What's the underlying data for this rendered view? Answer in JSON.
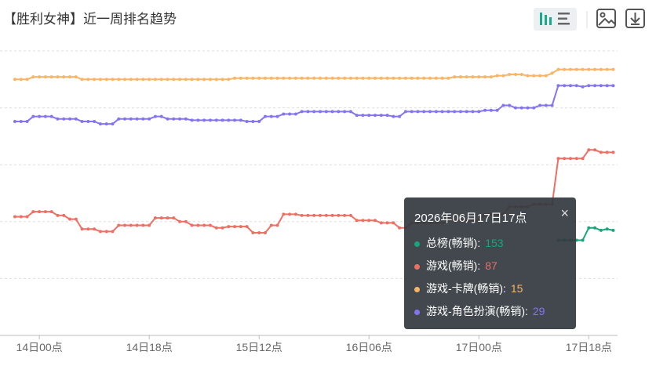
{
  "header": {
    "title": "【胜利女神】近一周排名趋势"
  },
  "chart_data": {
    "type": "line",
    "categories": [
      null,
      null,
      null,
      null,
      "14日00点",
      null,
      null,
      null,
      null,
      null,
      null,
      null,
      null,
      null,
      null,
      null,
      null,
      null,
      null,
      null,
      null,
      null,
      "14日18点",
      null,
      null,
      null,
      null,
      null,
      null,
      null,
      null,
      null,
      null,
      null,
      null,
      null,
      null,
      null,
      null,
      null,
      "15日12点",
      null,
      null,
      null,
      null,
      null,
      null,
      null,
      null,
      null,
      null,
      null,
      null,
      null,
      null,
      null,
      null,
      null,
      "16日06点",
      null,
      null,
      null,
      null,
      null,
      null,
      null,
      null,
      null,
      null,
      null,
      null,
      null,
      null,
      null,
      null,
      null,
      "17日00点",
      null,
      null,
      null,
      null,
      null,
      null,
      null,
      null,
      null,
      null,
      null,
      null,
      null,
      null,
      null,
      null,
      null,
      "17日18点",
      null,
      null,
      null,
      null
    ],
    "ylim": [
      0,
      230
    ],
    "yticks": [
      0,
      46,
      92,
      138,
      184,
      230
    ],
    "y_inverted": true,
    "grid": true,
    "series": [
      {
        "name": "总榜(畅销)",
        "color": "#17a67b",
        "values": [
          null,
          null,
          null,
          null,
          null,
          null,
          null,
          null,
          null,
          null,
          null,
          null,
          null,
          null,
          null,
          null,
          null,
          null,
          null,
          null,
          null,
          null,
          null,
          null,
          null,
          null,
          null,
          null,
          null,
          null,
          null,
          null,
          null,
          null,
          null,
          null,
          null,
          null,
          null,
          null,
          null,
          null,
          null,
          null,
          null,
          null,
          null,
          null,
          null,
          null,
          null,
          null,
          null,
          null,
          null,
          null,
          null,
          null,
          null,
          null,
          null,
          null,
          null,
          null,
          null,
          null,
          null,
          null,
          null,
          null,
          null,
          null,
          null,
          null,
          null,
          null,
          null,
          null,
          null,
          null,
          null,
          null,
          null,
          null,
          null,
          null,
          null,
          null,
          null,
          153,
          153,
          153,
          153,
          153,
          143,
          143,
          145,
          144,
          145
        ]
      },
      {
        "name": "游戏(畅销)",
        "color": "#ee6f63",
        "values": [
          134,
          134,
          134,
          130,
          130,
          130,
          130,
          133,
          133,
          136,
          136,
          144,
          144,
          144,
          146,
          146,
          146,
          141,
          141,
          141,
          141,
          141,
          141,
          135,
          135,
          135,
          135,
          138,
          138,
          141,
          141,
          141,
          141,
          143,
          143,
          142,
          142,
          142,
          142,
          147,
          147,
          147,
          141,
          141,
          132,
          132,
          132,
          133,
          133,
          133,
          133,
          133,
          133,
          133,
          133,
          133,
          137,
          137,
          137,
          137,
          139,
          139,
          139,
          143,
          143,
          139,
          139,
          139,
          139,
          139,
          139,
          137,
          137,
          137,
          137,
          137,
          137,
          132,
          132,
          132,
          132,
          126,
          126,
          126,
          126,
          124,
          124,
          124,
          124,
          87,
          87,
          87,
          87,
          87,
          80,
          80,
          82,
          82,
          82
        ]
      },
      {
        "name": "游戏-卡牌(畅销)",
        "color": "#f9b466",
        "values": [
          23,
          23,
          23,
          21,
          21,
          21,
          21,
          21,
          21,
          21,
          21,
          23,
          23,
          23,
          23,
          23,
          23,
          23,
          23,
          23,
          23,
          23,
          23,
          23,
          23,
          23,
          23,
          23,
          23,
          23,
          23,
          23,
          23,
          23,
          23,
          23,
          22,
          22,
          22,
          22,
          22,
          22,
          22,
          22,
          22,
          22,
          22,
          22,
          22,
          22,
          22,
          22,
          22,
          22,
          22,
          22,
          22,
          22,
          22,
          22,
          22,
          22,
          22,
          22,
          22,
          22,
          22,
          22,
          22,
          22,
          22,
          22,
          21,
          21,
          21,
          21,
          21,
          21,
          21,
          20,
          20,
          19,
          19,
          19,
          20,
          20,
          20,
          20,
          18,
          15,
          15,
          15,
          15,
          15,
          15,
          15,
          15,
          15,
          15
        ]
      },
      {
        "name": "游戏-角色扮演(畅销)",
        "color": "#8574ef",
        "values": [
          57,
          57,
          57,
          53,
          53,
          53,
          53,
          55,
          55,
          55,
          55,
          57,
          57,
          57,
          59,
          59,
          59,
          55,
          55,
          55,
          55,
          55,
          55,
          53,
          53,
          55,
          55,
          55,
          55,
          56,
          56,
          56,
          56,
          56,
          56,
          56,
          56,
          56,
          57,
          57,
          57,
          53,
          53,
          53,
          51,
          51,
          51,
          49,
          49,
          49,
          49,
          49,
          49,
          49,
          49,
          49,
          52,
          52,
          52,
          52,
          52,
          52,
          53,
          53,
          49,
          49,
          49,
          49,
          49,
          49,
          49,
          49,
          49,
          49,
          49,
          49,
          49,
          48,
          48,
          48,
          44,
          44,
          46,
          46,
          46,
          46,
          44,
          44,
          44,
          28,
          28,
          28,
          28,
          29,
          28,
          28,
          28,
          28,
          28
        ]
      }
    ]
  },
  "tooltip": {
    "title": "2026年06月17日17点",
    "index": 93
  }
}
